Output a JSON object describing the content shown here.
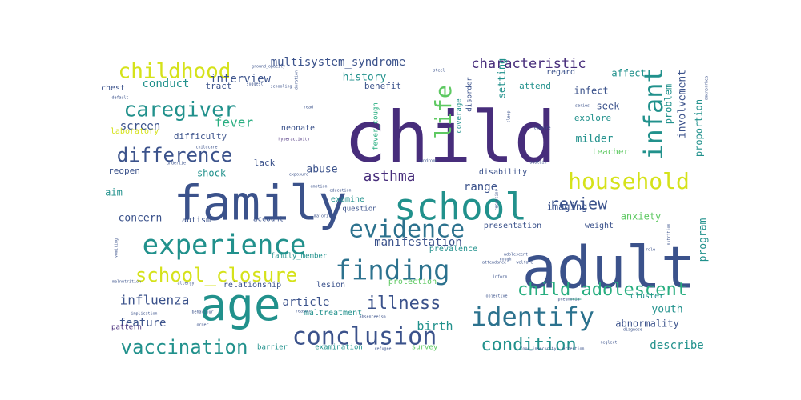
{
  "palette": {
    "deep_purple": "#472d7b",
    "indigo": "#3b528b",
    "blue": "#2c728e",
    "teal": "#21918c",
    "green_teal": "#28ae80",
    "green": "#5ec962",
    "lime": "#addc30",
    "yellow": "#d5e21a",
    "background": "#ffffff"
  },
  "words": [
    {
      "text": "child",
      "weight": 100
    },
    {
      "text": "adult",
      "weight": 62
    },
    {
      "text": "family",
      "weight": 54
    },
    {
      "text": "school",
      "weight": 48
    },
    {
      "text": "age",
      "weight": 46
    },
    {
      "text": "infant",
      "weight": 30
    },
    {
      "text": "experience",
      "weight": 30
    },
    {
      "text": "evidence",
      "weight": 28
    },
    {
      "text": "finding",
      "weight": 28
    },
    {
      "text": "identify",
      "weight": 27
    },
    {
      "text": "conclusion",
      "weight": 27
    },
    {
      "text": "household",
      "weight": 25
    },
    {
      "text": "life",
      "weight": 24
    },
    {
      "text": "caregiver",
      "weight": 23
    },
    {
      "text": "childhood",
      "weight": 23
    },
    {
      "text": "difference",
      "weight": 22
    },
    {
      "text": "school_closure",
      "weight": 22
    },
    {
      "text": "child_adolescent",
      "weight": 21
    },
    {
      "text": "vaccination",
      "weight": 21
    },
    {
      "text": "illness",
      "weight": 20
    },
    {
      "text": "condition",
      "weight": 20
    },
    {
      "text": "review",
      "weight": 18
    },
    {
      "text": "characteristic",
      "weight": 17
    },
    {
      "text": "asthma",
      "weight": 16
    },
    {
      "text": "multisystem_syndrome",
      "weight": 15
    },
    {
      "text": "fever",
      "weight": 15
    },
    {
      "text": "influenza",
      "weight": 14
    },
    {
      "text": "history",
      "weight": 13
    },
    {
      "text": "birth",
      "weight": 13
    },
    {
      "text": "involvement",
      "weight": 13
    },
    {
      "text": "interview",
      "weight": 13
    },
    {
      "text": "screen",
      "weight": 13
    },
    {
      "text": "conduct",
      "weight": 12
    },
    {
      "text": "feature",
      "weight": 12
    },
    {
      "text": "article",
      "weight": 12
    },
    {
      "text": "manifestation",
      "weight": 12
    },
    {
      "text": "range",
      "weight": 12
    },
    {
      "text": "describe",
      "weight": 12
    },
    {
      "text": "program",
      "weight": 12
    },
    {
      "text": "problem",
      "weight": 12
    },
    {
      "text": "proportion",
      "weight": 12
    },
    {
      "text": "milder",
      "weight": 12
    },
    {
      "text": "concern",
      "weight": 12
    },
    {
      "text": "youth",
      "weight": 12
    },
    {
      "text": "abnormality",
      "weight": 11
    },
    {
      "text": "setting",
      "weight": 11
    },
    {
      "text": "affect",
      "weight": 11
    },
    {
      "text": "benefit",
      "weight": 10
    },
    {
      "text": "abuse",
      "weight": 10
    },
    {
      "text": "tract",
      "weight": 10
    },
    {
      "text": "difficulty",
      "weight": 10
    },
    {
      "text": "infect",
      "weight": 10
    },
    {
      "text": "seek",
      "weight": 10
    },
    {
      "text": "explore",
      "weight": 10
    },
    {
      "text": "imaging",
      "weight": 10
    },
    {
      "text": "anxiety",
      "weight": 10
    },
    {
      "text": "shock",
      "weight": 10
    },
    {
      "text": "aim",
      "weight": 10
    },
    {
      "text": "lack",
      "weight": 10
    },
    {
      "text": "reopen",
      "weight": 10
    },
    {
      "text": "attend",
      "weight": 10
    },
    {
      "text": "teacher",
      "weight": 10
    },
    {
      "text": "laboratory",
      "weight": 9
    },
    {
      "text": "regard",
      "weight": 9
    },
    {
      "text": "coverage",
      "weight": 9
    },
    {
      "text": "fever_cough",
      "weight": 9
    },
    {
      "text": "disorder",
      "weight": 9
    },
    {
      "text": "neonate",
      "weight": 9
    },
    {
      "text": "cluster",
      "weight": 9
    },
    {
      "text": "maltreatment",
      "weight": 9
    },
    {
      "text": "presentation",
      "weight": 9
    },
    {
      "text": "weight",
      "weight": 9
    },
    {
      "text": "disability",
      "weight": 9
    },
    {
      "text": "examine",
      "weight": 9
    },
    {
      "text": "question",
      "weight": 9
    },
    {
      "text": "prevalence",
      "weight": 9
    },
    {
      "text": "account",
      "weight": 9
    },
    {
      "text": "autism",
      "weight": 9
    },
    {
      "text": "lesion",
      "weight": 9
    },
    {
      "text": "protection",
      "weight": 9
    },
    {
      "text": "relationship",
      "weight": 9
    },
    {
      "text": "family_member",
      "weight": 9
    },
    {
      "text": "chest",
      "weight": 9
    },
    {
      "text": "examination",
      "weight": 8
    },
    {
      "text": "barrier",
      "weight": 8
    },
    {
      "text": "survey",
      "weight": 8
    },
    {
      "text": "pattern",
      "weight": 8
    },
    {
      "text": "hyperactivity",
      "weight": 6
    },
    {
      "text": "childcare",
      "weight": 5
    },
    {
      "text": "schooling",
      "weight": 5
    },
    {
      "text": "suggest",
      "weight": 5
    },
    {
      "text": "allergy",
      "weight": 5
    },
    {
      "text": "malnutrition",
      "weight": 5
    },
    {
      "text": "implication",
      "weight": 5
    },
    {
      "text": "vomiting",
      "weight": 5
    },
    {
      "text": "behaviour",
      "weight": 5
    },
    {
      "text": "welfare",
      "weight": 5
    },
    {
      "text": "refugee",
      "weight": 5
    },
    {
      "text": "pneumonia",
      "weight": 5
    },
    {
      "text": "sustain",
      "weight": 5
    },
    {
      "text": "diagnose",
      "weight": 5
    },
    {
      "text": "neglect",
      "weight": 5
    },
    {
      "text": "attention",
      "weight": 5
    },
    {
      "text": "food_insecurity",
      "weight": 5
    },
    {
      "text": "majority",
      "weight": 5
    },
    {
      "text": "compare",
      "weight": 5
    },
    {
      "text": "syndrome",
      "weight": 5
    },
    {
      "text": "ground_opacity",
      "weight": 5
    },
    {
      "text": "recession",
      "weight": 5
    },
    {
      "text": "emotion",
      "weight": 5
    },
    {
      "text": "exposure",
      "weight": 5
    },
    {
      "text": "objective",
      "weight": 5
    },
    {
      "text": "absenteeism",
      "weight": 5
    },
    {
      "text": "attendance",
      "weight": 5
    },
    {
      "text": "adolescent",
      "weight": 5
    },
    {
      "text": "read",
      "weight": 5
    },
    {
      "text": "order",
      "weight": 5
    },
    {
      "text": "steel",
      "weight": 5
    },
    {
      "text": "sleep",
      "weight": 5
    },
    {
      "text": "cough",
      "weight": 5
    },
    {
      "text": "role",
      "weight": 5
    },
    {
      "text": "series",
      "weight": 5
    },
    {
      "text": "inform",
      "weight": 5
    },
    {
      "text": "default",
      "weight": 5
    },
    {
      "text": "underlie",
      "weight": 5
    },
    {
      "text": "nutrition",
      "weight": 5
    },
    {
      "text": "amenorrhea",
      "weight": 5
    },
    {
      "text": "education",
      "weight": 5
    },
    {
      "text": "duration",
      "weight": 5
    },
    {
      "text": "reason",
      "weight": 5
    }
  ]
}
